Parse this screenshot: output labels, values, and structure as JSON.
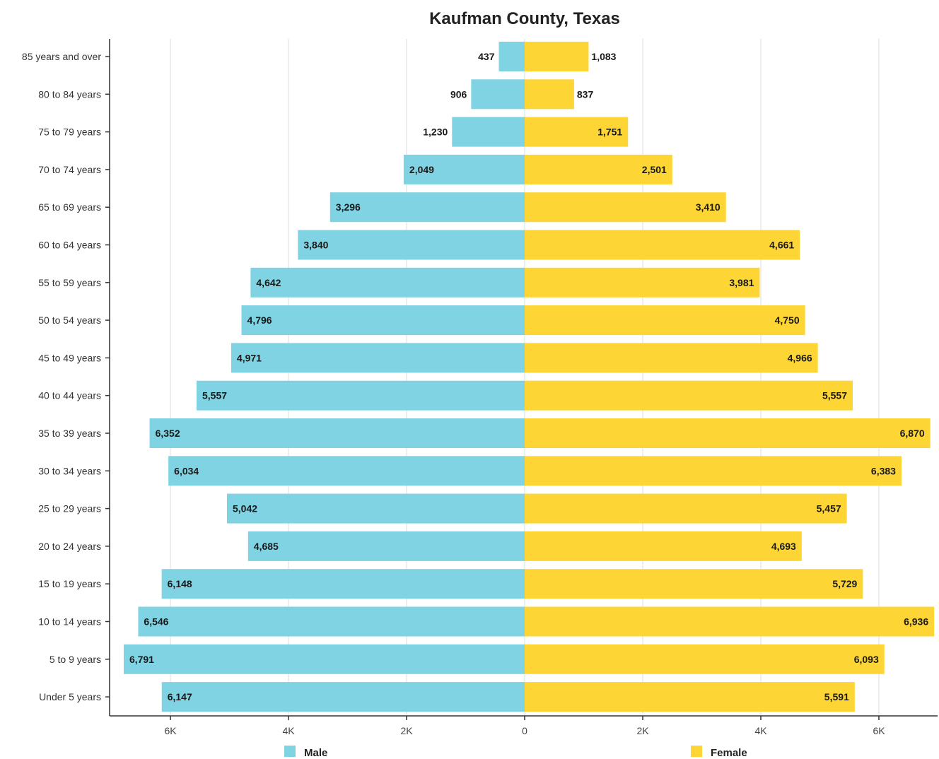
{
  "chart_data": {
    "type": "bar",
    "orientation": "horizontal",
    "layout": "population-pyramid",
    "title": "Kaufman County, Texas",
    "categories": [
      "85 years and over",
      "80 to 84 years",
      "75 to 79 years",
      "70 to 74 years",
      "65 to 69 years",
      "60 to 64 years",
      "55 to 59 years",
      "50 to 54 years",
      "45 to 49 years",
      "40 to 44 years",
      "35 to 39 years",
      "30 to 34 years",
      "25 to 29 years",
      "20 to 24 years",
      "15 to 19 years",
      "10 to 14 years",
      "5 to 9 years",
      "Under 5 years"
    ],
    "series": [
      {
        "name": "Male",
        "color": "#7fd3e3",
        "side": "left",
        "values": [
          437,
          906,
          1230,
          2049,
          3296,
          3840,
          4642,
          4796,
          4971,
          5557,
          6352,
          6034,
          5042,
          4685,
          6148,
          6546,
          6791,
          6147
        ],
        "labels": [
          "437",
          "906",
          "1,230",
          "2,049",
          "3,296",
          "3,840",
          "4,642",
          "4,796",
          "4,971",
          "5,557",
          "6,352",
          "6,034",
          "5,042",
          "4,685",
          "6,148",
          "6,546",
          "6,791",
          "6,147"
        ]
      },
      {
        "name": "Female",
        "color": "#fdd635",
        "side": "right",
        "values": [
          1083,
          837,
          1751,
          2501,
          3410,
          4661,
          3981,
          4750,
          4966,
          5557,
          6870,
          6383,
          5457,
          4693,
          5729,
          6936,
          6093,
          5591
        ],
        "labels": [
          "1,083",
          "837",
          "1,751",
          "2,501",
          "3,410",
          "4,661",
          "3,981",
          "4,750",
          "4,966",
          "5,557",
          "6,870",
          "6,383",
          "5,457",
          "4,693",
          "5,729",
          "6,936",
          "6,093",
          "5,591"
        ]
      }
    ],
    "xlim": [
      -7000,
      7000
    ],
    "x_ticks": [
      -6000,
      -4000,
      -2000,
      0,
      2000,
      4000,
      6000
    ],
    "x_tick_labels": [
      "6K",
      "4K",
      "2K",
      "0",
      "2K",
      "4K",
      "6K"
    ],
    "grid": true,
    "legend_position": "bottom"
  }
}
